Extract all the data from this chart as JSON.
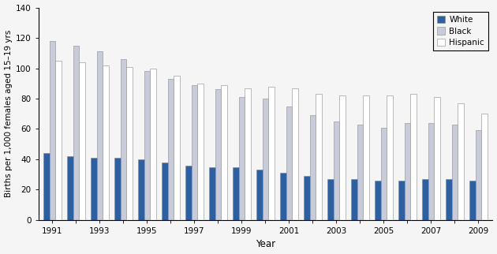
{
  "years": [
    1991,
    1992,
    1993,
    1994,
    1995,
    1996,
    1997,
    1998,
    1999,
    2000,
    2001,
    2002,
    2003,
    2004,
    2005,
    2006,
    2007,
    2008,
    2009
  ],
  "white": [
    44,
    42,
    41,
    41,
    40,
    38,
    36,
    35,
    35,
    33,
    31,
    29,
    27,
    27,
    26,
    26,
    27,
    27,
    26
  ],
  "black": [
    118,
    115,
    111,
    106,
    98,
    93,
    89,
    86,
    81,
    80,
    75,
    69,
    65,
    63,
    61,
    64,
    64,
    63,
    59
  ],
  "hispanic": [
    105,
    104,
    102,
    101,
    100,
    95,
    90,
    89,
    87,
    88,
    87,
    83,
    82,
    82,
    82,
    83,
    81,
    77,
    70
  ],
  "white_color": "#2E5F9E",
  "black_color": "#C8CCDA",
  "hispanic_color": "#FFFFFF",
  "bar_edge_color": "#888888",
  "ylim": [
    0,
    140
  ],
  "yticks": [
    0,
    20,
    40,
    60,
    80,
    100,
    120,
    140
  ],
  "ylabel": "Births per 1,000 females aged 15–19 yrs",
  "xlabel": "Year",
  "legend_labels": [
    "White",
    "Black",
    "Hispanic"
  ],
  "bar_width": 0.25,
  "figsize": [
    6.3,
    3.22
  ],
  "dpi": 100,
  "bg_color": "#F5F5F5"
}
